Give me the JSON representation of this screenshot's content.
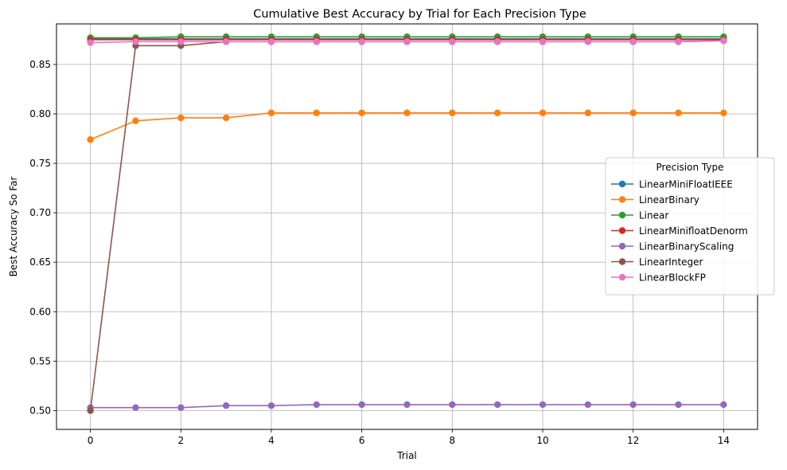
{
  "chart_data": {
    "type": "line",
    "title": "Cumulative Best Accuracy by Trial for Each Precision Type",
    "xlabel": "Trial",
    "ylabel": "Best Accuracy So Far",
    "xlim": [
      -0.75,
      14.75
    ],
    "ylim": [
      0.481,
      0.891
    ],
    "xticks": [
      0,
      2,
      4,
      6,
      8,
      10,
      12,
      14
    ],
    "yticks": [
      0.5,
      0.55,
      0.6,
      0.65,
      0.7,
      0.75,
      0.8,
      0.85
    ],
    "grid": true,
    "legend": {
      "title": "Precision Type",
      "placement": "center-right"
    },
    "x": [
      0,
      1,
      2,
      3,
      4,
      5,
      6,
      7,
      8,
      9,
      10,
      11,
      12,
      13,
      14
    ],
    "series": [
      {
        "name": "LinearMiniFloatIEEE",
        "color": "#1f77b4",
        "values": [
          0.876,
          0.876,
          0.876,
          0.876,
          0.876,
          0.876,
          0.876,
          0.876,
          0.876,
          0.876,
          0.876,
          0.876,
          0.876,
          0.876,
          0.876
        ]
      },
      {
        "name": "LinearBinary",
        "color": "#ff7f0e",
        "values": [
          0.774,
          0.793,
          0.796,
          0.796,
          0.801,
          0.801,
          0.801,
          0.801,
          0.801,
          0.801,
          0.801,
          0.801,
          0.801,
          0.801,
          0.801
        ]
      },
      {
        "name": "Linear",
        "color": "#2ca02c",
        "values": [
          0.877,
          0.877,
          0.878,
          0.878,
          0.878,
          0.878,
          0.878,
          0.878,
          0.878,
          0.878,
          0.878,
          0.878,
          0.878,
          0.878,
          0.878
        ]
      },
      {
        "name": "LinearMinifloatDenorm",
        "color": "#d62728",
        "values": [
          0.875,
          0.875,
          0.875,
          0.875,
          0.875,
          0.875,
          0.875,
          0.875,
          0.875,
          0.875,
          0.875,
          0.875,
          0.875,
          0.875,
          0.875
        ]
      },
      {
        "name": "LinearBinaryScaling",
        "color": "#9467bd",
        "values": [
          0.503,
          0.503,
          0.503,
          0.505,
          0.505,
          0.506,
          0.506,
          0.506,
          0.506,
          0.506,
          0.506,
          0.506,
          0.506,
          0.506,
          0.506
        ]
      },
      {
        "name": "LinearInteger",
        "color": "#8c564b",
        "values": [
          0.5,
          0.869,
          0.869,
          0.873,
          0.873,
          0.873,
          0.873,
          0.873,
          0.873,
          0.873,
          0.873,
          0.873,
          0.873,
          0.873,
          0.874
        ]
      },
      {
        "name": "LinearBlockFP",
        "color": "#e377c2",
        "values": [
          0.872,
          0.873,
          0.873,
          0.873,
          0.873,
          0.873,
          0.873,
          0.873,
          0.873,
          0.873,
          0.873,
          0.873,
          0.873,
          0.873,
          0.874
        ]
      }
    ]
  }
}
